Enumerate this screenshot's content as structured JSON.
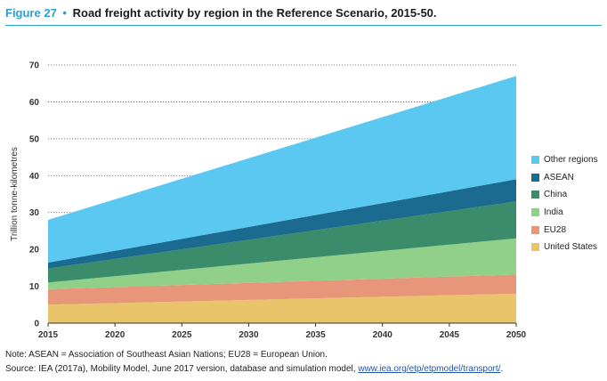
{
  "header": {
    "figure_label": "Figure 27",
    "bullet": "•",
    "title": "Road freight activity by region in the Reference Scenario, 2015-50."
  },
  "chart_data": {
    "type": "area",
    "stacked": true,
    "title": "Road freight activity by region in the Reference Scenario, 2015-50.",
    "xlabel": "",
    "ylabel": "Trillion tonne-kilometres",
    "x": [
      2015,
      2050
    ],
    "x_ticks": [
      "2015",
      "2020",
      "2025",
      "2030",
      "2035",
      "2040",
      "2045",
      "2050"
    ],
    "y_ticks": [
      "0",
      "10",
      "20",
      "30",
      "40",
      "50",
      "60",
      "70"
    ],
    "ylim": [
      0,
      70
    ],
    "xlim": [
      2015,
      2050
    ],
    "grid": "horizontal dotted",
    "legend_position": "right",
    "series": [
      {
        "name": "United States",
        "color": "#e9c46a",
        "values": [
          5,
          8
        ]
      },
      {
        "name": "EU28",
        "color": "#e8967a",
        "values": [
          4.2,
          5.2
        ]
      },
      {
        "name": "India",
        "color": "#90d088",
        "values": [
          1.8,
          9.8
        ]
      },
      {
        "name": "China",
        "color": "#3a8c6a",
        "values": [
          3.8,
          10
        ]
      },
      {
        "name": "ASEAN",
        "color": "#1b6a8f",
        "values": [
          1.6,
          6
        ]
      },
      {
        "name": "Other regions",
        "color": "#5ac8f0",
        "values": [
          11.6,
          28
        ]
      }
    ]
  },
  "legend_order": [
    "Other regions",
    "ASEAN",
    "China",
    "India",
    "EU28",
    "United States"
  ],
  "notes": {
    "line1": "Note: ASEAN = Association of Southeast Asian Nations; EU28 = European Union.",
    "line2_prefix": "Source: IEA (2017a), Mobility Model, June 2017 version, database and simulation model, ",
    "line2_link": "www.iea.org/etp/etpmodel/transport/",
    "line2_suffix": "."
  }
}
